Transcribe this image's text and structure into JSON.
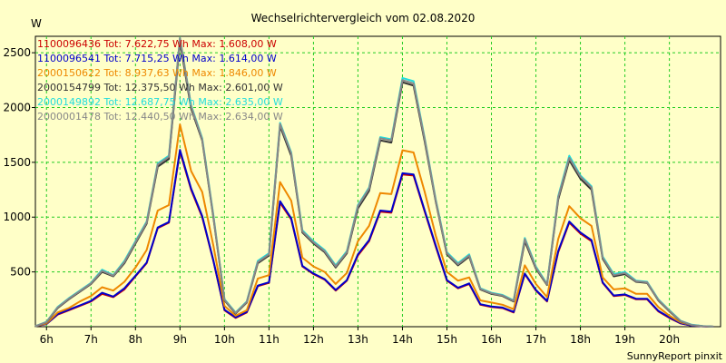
{
  "chart_data": {
    "type": "line",
    "title": "Wechselrichtervergleich vom 02.08.2020",
    "ylabel": "W",
    "footer": "SunnyReport pinxit",
    "ylim": [
      0,
      2650
    ],
    "xlim": [
      5.75,
      21.15
    ],
    "y_ticks": [
      500,
      1000,
      1500,
      2000,
      2500
    ],
    "y_tick_labels": [
      "500",
      "1000",
      "1500",
      "2000",
      "2500"
    ],
    "x_ticks": [
      6,
      7,
      8,
      9,
      10,
      11,
      12,
      13,
      14,
      15,
      16,
      17,
      18,
      19,
      20
    ],
    "x_tick_labels": [
      "6h",
      "7h",
      "8h",
      "9h",
      "10h",
      "11h",
      "12h",
      "13h",
      "14h",
      "15h",
      "16h",
      "17h",
      "18h",
      "19h",
      "20h"
    ],
    "grid": true,
    "legend_position": "top-left",
    "x": [
      5.75,
      6,
      6.25,
      6.5,
      6.75,
      7,
      7.25,
      7.5,
      7.75,
      8,
      8.25,
      8.5,
      8.75,
      9,
      9.25,
      9.5,
      9.75,
      10,
      10.25,
      10.5,
      10.75,
      11,
      11.25,
      11.5,
      11.75,
      12,
      12.25,
      12.5,
      12.75,
      13,
      13.25,
      13.5,
      13.75,
      14,
      14.25,
      14.5,
      14.75,
      15,
      15.25,
      15.5,
      15.75,
      16,
      16.25,
      16.5,
      16.75,
      17,
      17.25,
      17.5,
      17.75,
      18,
      18.25,
      18.5,
      18.75,
      19,
      19.25,
      19.5,
      19.75,
      20,
      20.25,
      20.5,
      20.75,
      21
    ],
    "series": [
      {
        "name": "1100096436",
        "legend": "1100096436 Tot: 7.622,75 Wh Max: 1.608,00 W",
        "color": "#cc0000",
        "values": [
          5,
          25,
          110,
          150,
          190,
          230,
          300,
          270,
          340,
          460,
          580,
          900,
          950,
          1600,
          1250,
          1000,
          600,
          150,
          80,
          130,
          370,
          400,
          1130,
          980,
          550,
          480,
          430,
          330,
          420,
          650,
          780,
          1050,
          1040,
          1390,
          1380,
          1050,
          730,
          420,
          350,
          390,
          200,
          180,
          170,
          130,
          480,
          330,
          230,
          680,
          950,
          850,
          780,
          400,
          280,
          290,
          250,
          250,
          140,
          80,
          30,
          10,
          3,
          0
        ]
      },
      {
        "name": "1100096541",
        "legend": "1100096541 Tot: 7.715,25 Wh Max: 1.614,00 W",
        "color": "#0000cc",
        "values": [
          5,
          25,
          115,
          155,
          195,
          235,
          310,
          275,
          350,
          465,
          585,
          905,
          955,
          1614,
          1260,
          1010,
          605,
          155,
          85,
          135,
          375,
          405,
          1145,
          990,
          555,
          485,
          435,
          335,
          425,
          660,
          790,
          1060,
          1050,
          1400,
          1390,
          1060,
          740,
          425,
          355,
          395,
          205,
          185,
          175,
          135,
          485,
          335,
          235,
          690,
          960,
          860,
          790,
          405,
          285,
          295,
          255,
          255,
          145,
          85,
          32,
          10,
          3,
          0
        ]
      },
      {
        "name": "2000150622",
        "legend": "2000150622 Tot: 8.937,63 Wh Max: 1.846,00 W",
        "color": "#ee8800",
        "values": [
          5,
          30,
          130,
          170,
          230,
          280,
          360,
          330,
          410,
          540,
          700,
          1060,
          1110,
          1846,
          1420,
          1230,
          740,
          190,
          100,
          150,
          440,
          470,
          1320,
          1150,
          630,
          550,
          500,
          390,
          490,
          780,
          920,
          1220,
          1210,
          1610,
          1590,
          1230,
          830,
          500,
          420,
          450,
          240,
          220,
          200,
          160,
          560,
          390,
          270,
          800,
          1100,
          990,
          920,
          450,
          340,
          350,
          300,
          300,
          180,
          100,
          40,
          15,
          5,
          0
        ]
      },
      {
        "name": "2000154799",
        "legend": "2000154799 Tot: 12.375,50 Wh Max: 2.601,00 W",
        "color": "#333333",
        "values": [
          5,
          40,
          170,
          250,
          320,
          390,
          500,
          460,
          580,
          760,
          940,
          1460,
          1530,
          2601,
          1990,
          1700,
          1000,
          240,
          120,
          220,
          580,
          650,
          1830,
          1560,
          860,
          760,
          680,
          540,
          670,
          1080,
          1240,
          1700,
          1680,
          2230,
          2200,
          1690,
          1140,
          660,
          560,
          640,
          340,
          300,
          280,
          230,
          780,
          530,
          380,
          1160,
          1520,
          1350,
          1250,
          620,
          460,
          480,
          410,
          400,
          240,
          140,
          50,
          15,
          5,
          0
        ]
      },
      {
        "name": "2000149892",
        "legend": "2000149892 Tot: 12.687,75 Wh Max: 2.635,00 W",
        "color": "#22dddd",
        "values": [
          5,
          45,
          180,
          260,
          330,
          400,
          520,
          470,
          600,
          780,
          960,
          1490,
          1560,
          2635,
          2020,
          1720,
          1020,
          250,
          130,
          230,
          600,
          670,
          1860,
          1590,
          880,
          780,
          700,
          560,
          690,
          1110,
          1270,
          1730,
          1710,
          2270,
          2240,
          1720,
          1160,
          680,
          580,
          660,
          350,
          310,
          290,
          240,
          810,
          550,
          390,
          1190,
          1560,
          1380,
          1280,
          640,
          480,
          500,
          420,
          410,
          250,
          150,
          55,
          18,
          6,
          0
        ]
      },
      {
        "name": "2000001478",
        "legend": "2000001478 Tot: 12.440,50 Wh Max: 2.634,00 W",
        "color": "#888888",
        "values": [
          5,
          42,
          175,
          255,
          325,
          395,
          510,
          465,
          590,
          770,
          950,
          1480,
          1550,
          2634,
          2010,
          1710,
          1010,
          245,
          125,
          225,
          590,
          660,
          1850,
          1580,
          870,
          770,
          690,
          550,
          680,
          1100,
          1260,
          1720,
          1700,
          2250,
          2220,
          1710,
          1150,
          670,
          570,
          650,
          345,
          305,
          285,
          235,
          800,
          540,
          385,
          1180,
          1540,
          1370,
          1270,
          630,
          470,
          490,
          415,
          405,
          245,
          145,
          52,
          16,
          5,
          0
        ]
      }
    ]
  }
}
